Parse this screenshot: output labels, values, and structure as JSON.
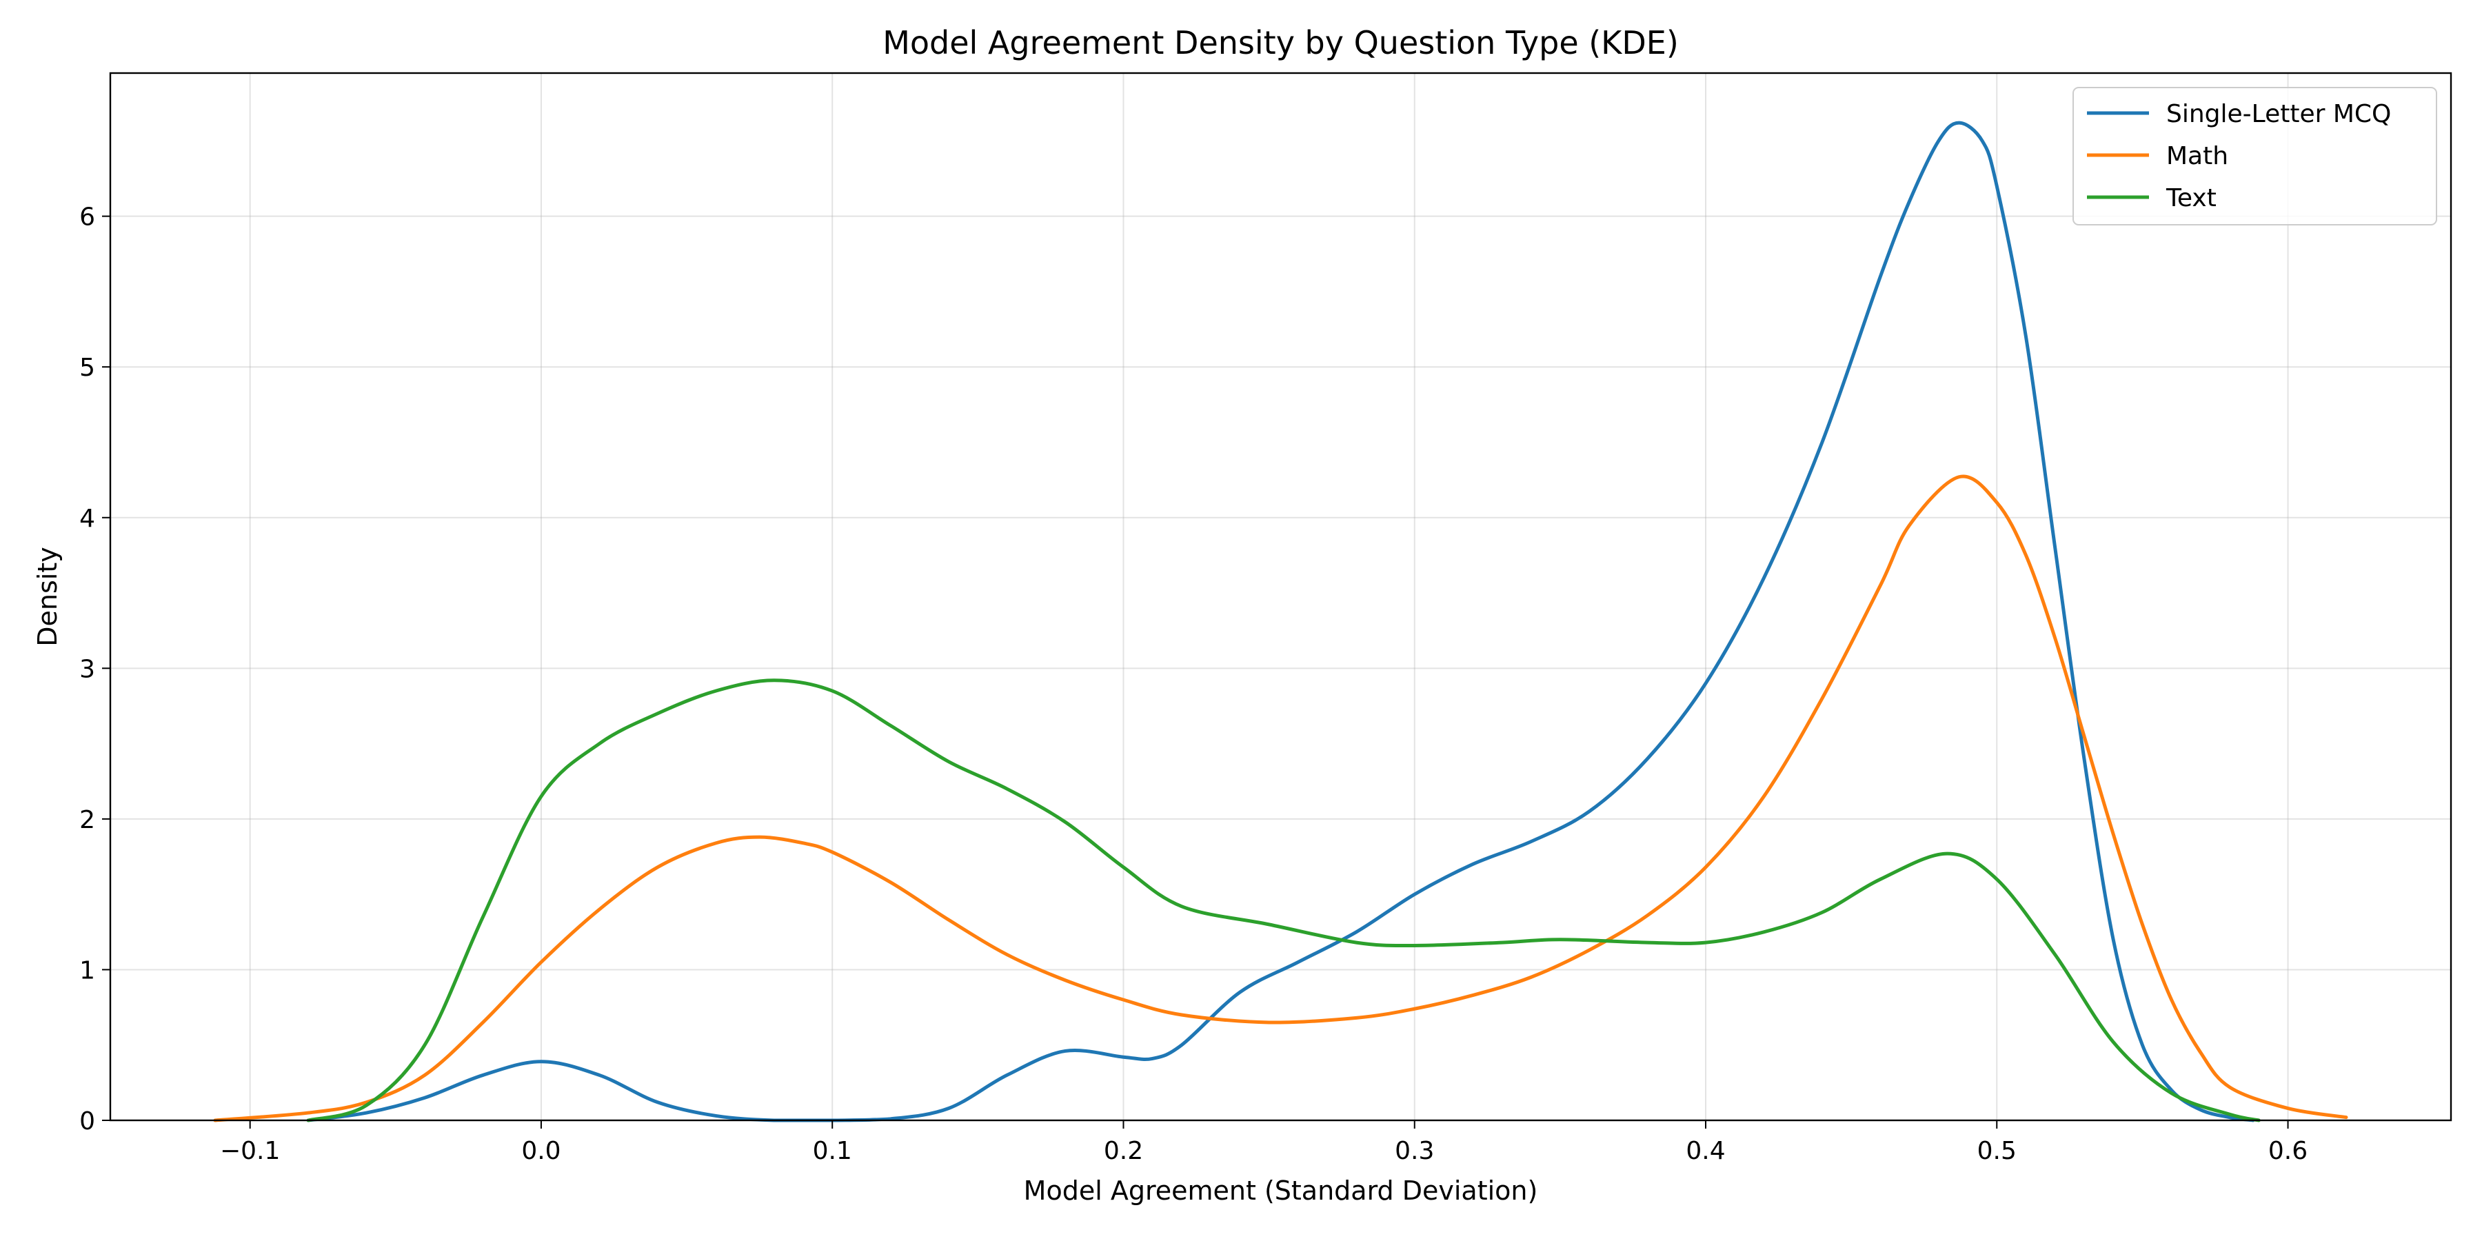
{
  "chart_data": {
    "type": "line",
    "title": "Model Agreement Density by Question Type (KDE)",
    "xlabel": "Model Agreement (Standard Deviation)",
    "ylabel": "Density",
    "xlim": [
      -0.148,
      0.656
    ],
    "ylim": [
      0,
      6.95
    ],
    "xticks": [
      -0.1,
      0.0,
      0.1,
      0.2,
      0.3,
      0.4,
      0.5,
      0.6
    ],
    "xtick_labels": [
      "−0.1",
      "0.0",
      "0.1",
      "0.2",
      "0.3",
      "0.4",
      "0.5",
      "0.6"
    ],
    "yticks": [
      0,
      1,
      2,
      3,
      4,
      5,
      6
    ],
    "ytick_labels": [
      "0",
      "1",
      "2",
      "3",
      "4",
      "5",
      "6"
    ],
    "grid": true,
    "legend_position": "top-right",
    "series": [
      {
        "name": "Single-Letter MCQ",
        "color": "#1f77b4",
        "x": [
          -0.08,
          -0.06,
          -0.04,
          -0.02,
          0.0,
          0.02,
          0.04,
          0.06,
          0.08,
          0.1,
          0.12,
          0.14,
          0.16,
          0.18,
          0.2,
          0.21,
          0.22,
          0.24,
          0.26,
          0.28,
          0.3,
          0.32,
          0.34,
          0.36,
          0.38,
          0.4,
          0.42,
          0.44,
          0.46,
          0.47,
          0.48,
          0.487,
          0.495,
          0.5,
          0.51,
          0.52,
          0.53,
          0.54,
          0.55,
          0.56,
          0.57,
          0.58,
          0.588
        ],
        "y": [
          0.0,
          0.05,
          0.15,
          0.3,
          0.39,
          0.3,
          0.12,
          0.03,
          0.0,
          0.0,
          0.01,
          0.08,
          0.3,
          0.46,
          0.42,
          0.41,
          0.5,
          0.85,
          1.05,
          1.25,
          1.5,
          1.7,
          1.85,
          2.05,
          2.4,
          2.9,
          3.6,
          4.5,
          5.6,
          6.1,
          6.5,
          6.62,
          6.5,
          6.2,
          5.2,
          3.8,
          2.4,
          1.2,
          0.5,
          0.2,
          0.07,
          0.02,
          0.0
        ]
      },
      {
        "name": "Math",
        "color": "#ff7f0e",
        "x": [
          -0.112,
          -0.08,
          -0.06,
          -0.04,
          -0.02,
          0.0,
          0.02,
          0.04,
          0.06,
          0.075,
          0.09,
          0.1,
          0.12,
          0.14,
          0.16,
          0.18,
          0.2,
          0.22,
          0.25,
          0.28,
          0.3,
          0.32,
          0.34,
          0.36,
          0.38,
          0.4,
          0.42,
          0.44,
          0.46,
          0.47,
          0.487,
          0.5,
          0.51,
          0.52,
          0.53,
          0.54,
          0.55,
          0.56,
          0.57,
          0.58,
          0.6,
          0.62
        ],
        "y": [
          0.0,
          0.05,
          0.12,
          0.3,
          0.65,
          1.05,
          1.4,
          1.68,
          1.84,
          1.88,
          1.84,
          1.78,
          1.58,
          1.33,
          1.1,
          0.93,
          0.8,
          0.7,
          0.65,
          0.68,
          0.74,
          0.83,
          0.95,
          1.13,
          1.36,
          1.68,
          2.15,
          2.8,
          3.55,
          3.95,
          4.27,
          4.1,
          3.75,
          3.2,
          2.55,
          1.9,
          1.3,
          0.8,
          0.45,
          0.22,
          0.08,
          0.02
        ]
      },
      {
        "name": "Text",
        "color": "#2ca02c",
        "x": [
          -0.08,
          -0.06,
          -0.04,
          -0.02,
          0.0,
          0.02,
          0.04,
          0.06,
          0.08,
          0.1,
          0.12,
          0.14,
          0.16,
          0.18,
          0.2,
          0.22,
          0.25,
          0.28,
          0.3,
          0.33,
          0.35,
          0.38,
          0.4,
          0.42,
          0.44,
          0.46,
          0.483,
          0.5,
          0.52,
          0.54,
          0.56,
          0.58,
          0.59
        ],
        "y": [
          0.0,
          0.1,
          0.5,
          1.35,
          2.15,
          2.5,
          2.7,
          2.85,
          2.92,
          2.85,
          2.62,
          2.38,
          2.2,
          1.98,
          1.68,
          1.42,
          1.3,
          1.18,
          1.16,
          1.18,
          1.2,
          1.18,
          1.18,
          1.25,
          1.38,
          1.6,
          1.77,
          1.6,
          1.1,
          0.52,
          0.18,
          0.04,
          0.0
        ]
      }
    ]
  }
}
